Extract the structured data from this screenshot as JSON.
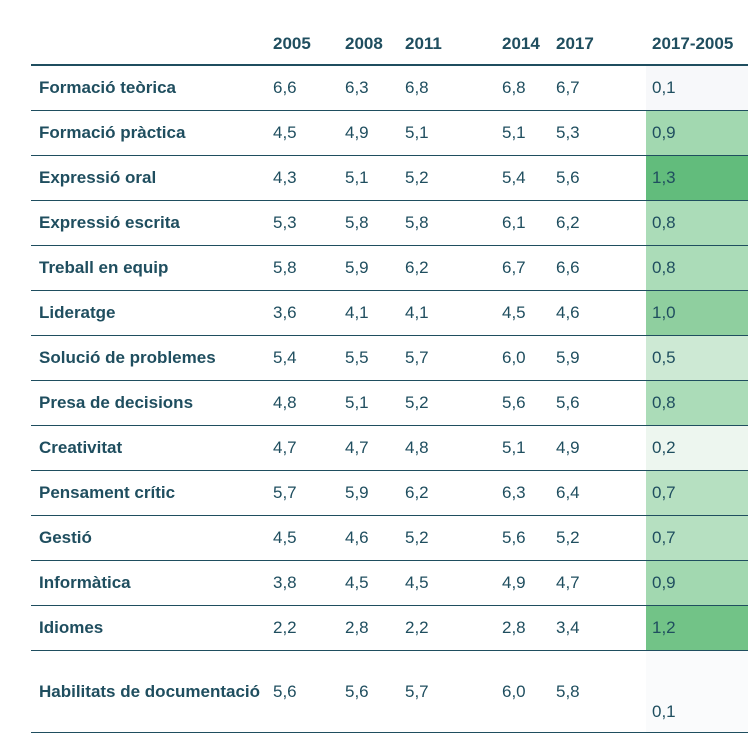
{
  "headers": {
    "label": "",
    "y2005": "2005",
    "y2008": "2008",
    "y2011": "2011",
    "y2014": "2014",
    "y2017": "2017",
    "diff": "2017-2005"
  },
  "rows": [
    {
      "label": "Formació teòrica",
      "v2005": "6,6",
      "v2008": "6,3",
      "v2011": "6,8",
      "v2014": "6,8",
      "v2017": "6,7",
      "diff": "0,1",
      "color": "#f7f8fa"
    },
    {
      "label": "Formació pràctica",
      "v2005": "4,5",
      "v2008": "4,9",
      "v2011": "5,1",
      "v2014": "5,1",
      "v2017": "5,3",
      "diff": "0,9",
      "color": "#a2d8b0"
    },
    {
      "label": "Expressió oral",
      "v2005": "4,3",
      "v2008": "5,1",
      "v2011": "5,2",
      "v2014": "5,4",
      "v2017": "5,6",
      "diff": "1,3",
      "color": "#62bc7c"
    },
    {
      "label": "Expressió escrita",
      "v2005": "5,3",
      "v2008": "5,8",
      "v2011": "5,8",
      "v2014": "6,1",
      "v2017": "6,2",
      "diff": "0,8",
      "color": "#abdcb8"
    },
    {
      "label": "Treball en equip",
      "v2005": "5,8",
      "v2008": "5,9",
      "v2011": "6,2",
      "v2014": "6,7",
      "v2017": "6,6",
      "diff": "0,8",
      "color": "#abdcb8"
    },
    {
      "label": "Lideratge",
      "v2005": "3,6",
      "v2008": "4,1",
      "v2011": "4,1",
      "v2014": "4,5",
      "v2017": "4,6",
      "diff": "1,0",
      "color": "#8fcf9f"
    },
    {
      "label": "Solució de problemes",
      "v2005": "5,4",
      "v2008": "5,5",
      "v2011": "5,7",
      "v2014": "6,0",
      "v2017": "5,9",
      "diff": "0,5",
      "color": "#cde9d4"
    },
    {
      "label": "Presa de decisions",
      "v2005": "4,8",
      "v2008": "5,1",
      "v2011": "5,2",
      "v2014": "5,6",
      "v2017": "5,6",
      "diff": "0,8",
      "color": "#abdcb8"
    },
    {
      "label": "Creativitat",
      "v2005": "4,7",
      "v2008": "4,7",
      "v2011": "4,8",
      "v2014": "5,1",
      "v2017": "4,9",
      "diff": "0,2",
      "color": "#edf6ef"
    },
    {
      "label": "Pensament crític",
      "v2005": "5,7",
      "v2008": "5,9",
      "v2011": "6,2",
      "v2014": "6,3",
      "v2017": "6,4",
      "diff": "0,7",
      "color": "#b6e0c1"
    },
    {
      "label": "Gestió",
      "v2005": "4,5",
      "v2008": "4,6",
      "v2011": "5,2",
      "v2014": "5,6",
      "v2017": "5,2",
      "diff": "0,7",
      "color": "#b6e0c1"
    },
    {
      "label": "Informàtica",
      "v2005": "3,8",
      "v2008": "4,5",
      "v2011": "4,5",
      "v2014": "4,9",
      "v2017": "4,7",
      "diff": "0,9",
      "color": "#a2d8b0"
    },
    {
      "label": "Idiomes",
      "v2005": "2,2",
      "v2008": "2,8",
      "v2011": "2,2",
      "v2014": "2,8",
      "v2017": "3,4",
      "diff": "1,2",
      "color": "#72c387"
    },
    {
      "label": "Habilitats de documentació",
      "v2005": "5,6",
      "v2008": "5,6",
      "v2011": "5,7",
      "v2014": "6,0",
      "v2017": "5,8",
      "diff": "0,1",
      "color": "#fafbfc"
    }
  ]
}
